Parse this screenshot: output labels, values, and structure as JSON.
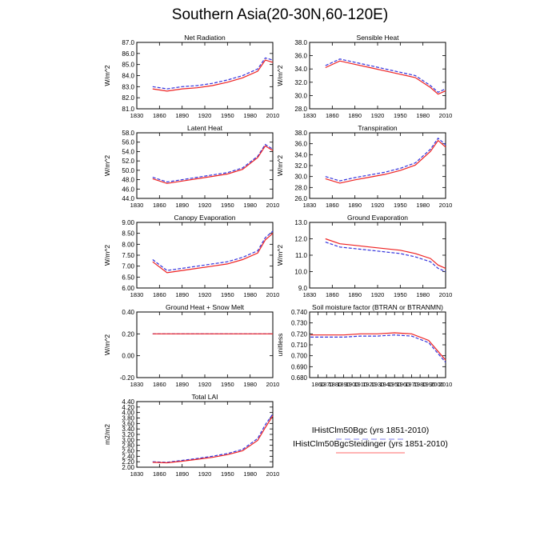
{
  "title": "Southern Asia(20-30N,60-120E)",
  "colors": {
    "series1": "#3333dd",
    "series2": "#ee2222",
    "axis": "#000000"
  },
  "legend": {
    "entries": [
      {
        "label": "IHistClm50Bgc (yrs 1851-2010)",
        "color": "#9999ee",
        "style": "dashed"
      },
      {
        "label": "IHistClm50BgcSteidinger (yrs 1851-2010)",
        "color": "#ff8888",
        "style": "solid"
      }
    ]
  },
  "chart_data": [
    {
      "type": "line",
      "title": "Net Radiation",
      "ylabel": "W/m^2",
      "xlim": [
        1830,
        2010
      ],
      "xticks": [
        "1830",
        "1860",
        "1890",
        "1920",
        "1950",
        "1980",
        "2010"
      ],
      "ylim": [
        81.0,
        87.0
      ],
      "yticks": [
        "81.0",
        "82.0",
        "83.0",
        "84.0",
        "85.0",
        "86.0",
        "87.0"
      ],
      "series": [
        {
          "name": "IHistClm50Bgc (yrs 1851-2010)",
          "x": [
            1851,
            1870,
            1890,
            1910,
            1930,
            1950,
            1970,
            1990,
            2000,
            2010
          ],
          "y": [
            83.0,
            82.8,
            83.0,
            83.1,
            83.3,
            83.6,
            84.0,
            84.6,
            85.6,
            85.4
          ]
        },
        {
          "name": "IHistClm50BgcSteidinger (yrs 1851-2010)",
          "x": [
            1851,
            1870,
            1890,
            1910,
            1930,
            1950,
            1970,
            1990,
            2000,
            2010
          ],
          "y": [
            82.8,
            82.6,
            82.8,
            82.9,
            83.1,
            83.4,
            83.8,
            84.4,
            85.4,
            85.2
          ]
        }
      ]
    },
    {
      "type": "line",
      "title": "Sensible Heat",
      "ylabel": "W/m^2",
      "xlim": [
        1830,
        2010
      ],
      "xticks": [
        "1830",
        "1860",
        "1890",
        "1920",
        "1950",
        "1980",
        "2010"
      ],
      "ylim": [
        28.0,
        38.0
      ],
      "yticks": [
        "28.0",
        "30.0",
        "32.0",
        "34.0",
        "36.0",
        "38.0"
      ],
      "series": [
        {
          "name": "IHistClm50Bgc (yrs 1851-2010)",
          "x": [
            1851,
            1870,
            1890,
            1910,
            1930,
            1950,
            1970,
            1990,
            2000,
            2010
          ],
          "y": [
            34.5,
            35.5,
            35.0,
            34.5,
            34.0,
            33.5,
            33.0,
            31.5,
            30.5,
            31.0
          ]
        },
        {
          "name": "IHistClm50BgcSteidinger (yrs 1851-2010)",
          "x": [
            1851,
            1870,
            1890,
            1910,
            1930,
            1950,
            1970,
            1990,
            2000,
            2010
          ],
          "y": [
            34.2,
            35.2,
            34.7,
            34.2,
            33.7,
            33.2,
            32.7,
            31.2,
            30.2,
            30.7
          ]
        }
      ]
    },
    {
      "type": "line",
      "title": "Latent Heat",
      "ylabel": "W/m^2",
      "xlim": [
        1830,
        2010
      ],
      "xticks": [
        "1830",
        "1860",
        "1890",
        "1920",
        "1950",
        "1980",
        "2010"
      ],
      "ylim": [
        44.0,
        58.0
      ],
      "yticks": [
        "44.0",
        "46.0",
        "48.0",
        "50.0",
        "52.0",
        "54.0",
        "56.0",
        "58.0"
      ],
      "series": [
        {
          "name": "IHistClm50Bgc (yrs 1851-2010)",
          "x": [
            1851,
            1870,
            1890,
            1910,
            1930,
            1950,
            1970,
            1990,
            2000,
            2010
          ],
          "y": [
            48.5,
            47.5,
            48.0,
            48.5,
            49.0,
            49.5,
            50.5,
            53.0,
            55.5,
            54.5
          ]
        },
        {
          "name": "IHistClm50BgcSteidinger (yrs 1851-2010)",
          "x": [
            1851,
            1870,
            1890,
            1910,
            1930,
            1950,
            1970,
            1990,
            2000,
            2010
          ],
          "y": [
            48.2,
            47.2,
            47.7,
            48.2,
            48.7,
            49.2,
            50.2,
            52.7,
            55.2,
            54.2
          ]
        }
      ]
    },
    {
      "type": "line",
      "title": "Transpiration",
      "ylabel": "W/m^2",
      "xlim": [
        1830,
        2010
      ],
      "xticks": [
        "1830",
        "1860",
        "1890",
        "1920",
        "1950",
        "1980",
        "2010"
      ],
      "ylim": [
        26.0,
        38.0
      ],
      "yticks": [
        "26.0",
        "28.0",
        "30.0",
        "32.0",
        "34.0",
        "36.0",
        "38.0"
      ],
      "series": [
        {
          "name": "IHistClm50Bgc (yrs 1851-2010)",
          "x": [
            1851,
            1870,
            1890,
            1910,
            1930,
            1950,
            1970,
            1990,
            2000,
            2010
          ],
          "y": [
            30.0,
            29.2,
            29.8,
            30.3,
            30.8,
            31.5,
            32.5,
            35.0,
            37.0,
            35.8
          ]
        },
        {
          "name": "IHistClm50BgcSteidinger (yrs 1851-2010)",
          "x": [
            1851,
            1870,
            1890,
            1910,
            1930,
            1950,
            1970,
            1990,
            2000,
            2010
          ],
          "y": [
            29.6,
            28.8,
            29.4,
            29.9,
            30.4,
            31.1,
            32.1,
            34.6,
            36.6,
            35.4
          ]
        }
      ]
    },
    {
      "type": "line",
      "title": "Canopy Evaporation",
      "ylabel": "W/m^2",
      "xlim": [
        1830,
        2010
      ],
      "xticks": [
        "1830",
        "1860",
        "1890",
        "1920",
        "1950",
        "1980",
        "2010"
      ],
      "ylim": [
        6.0,
        9.0
      ],
      "yticks": [
        "6.00",
        "6.50",
        "7.00",
        "7.50",
        "8.00",
        "8.50",
        "9.00"
      ],
      "series": [
        {
          "name": "IHistClm50Bgc (yrs 1851-2010)",
          "x": [
            1851,
            1870,
            1890,
            1910,
            1930,
            1950,
            1970,
            1990,
            2000,
            2010
          ],
          "y": [
            7.3,
            6.8,
            6.9,
            7.0,
            7.1,
            7.2,
            7.4,
            7.7,
            8.3,
            8.6
          ]
        },
        {
          "name": "IHistClm50BgcSteidinger (yrs 1851-2010)",
          "x": [
            1851,
            1870,
            1890,
            1910,
            1930,
            1950,
            1970,
            1990,
            2000,
            2010
          ],
          "y": [
            7.2,
            6.7,
            6.8,
            6.9,
            7.0,
            7.1,
            7.3,
            7.6,
            8.2,
            8.5
          ]
        }
      ]
    },
    {
      "type": "line",
      "title": "Ground Evaporation",
      "ylabel": "W/m^2",
      "xlim": [
        1830,
        2010
      ],
      "xticks": [
        "1830",
        "1860",
        "1890",
        "1920",
        "1950",
        "1980",
        "2010"
      ],
      "ylim": [
        9.0,
        13.0
      ],
      "yticks": [
        "9.0",
        "10.0",
        "11.0",
        "12.0",
        "13.0"
      ],
      "series": [
        {
          "name": "IHistClm50Bgc (yrs 1851-2010)",
          "x": [
            1851,
            1870,
            1890,
            1910,
            1930,
            1950,
            1970,
            1990,
            2000,
            2010
          ],
          "y": [
            11.8,
            11.5,
            11.4,
            11.3,
            11.2,
            11.1,
            10.9,
            10.6,
            10.2,
            10.0
          ]
        },
        {
          "name": "IHistClm50BgcSteidinger (yrs 1851-2010)",
          "x": [
            1851,
            1870,
            1890,
            1910,
            1930,
            1950,
            1970,
            1990,
            2000,
            2010
          ],
          "y": [
            12.0,
            11.7,
            11.6,
            11.5,
            11.4,
            11.3,
            11.1,
            10.8,
            10.4,
            10.2
          ]
        }
      ]
    },
    {
      "type": "line",
      "title": "Ground Heat + Snow Melt",
      "ylabel": "W/m^2",
      "xlim": [
        1830,
        2010
      ],
      "xticks": [
        "1830",
        "1860",
        "1890",
        "1920",
        "1950",
        "1980",
        "2010"
      ],
      "ylim": [
        -0.2,
        0.4
      ],
      "yticks": [
        "-0.20",
        "0.00",
        "0.20",
        "0.40"
      ],
      "series": [
        {
          "name": "IHistClm50Bgc (yrs 1851-2010)",
          "x": [
            1851,
            1870,
            1890,
            1910,
            1930,
            1950,
            1970,
            1990,
            2000,
            2010
          ],
          "y": [
            0.2,
            0.2,
            0.2,
            0.2,
            0.2,
            0.2,
            0.2,
            0.2,
            0.2,
            0.2
          ]
        },
        {
          "name": "IHistClm50BgcSteidinger (yrs 1851-2010)",
          "x": [
            1851,
            1870,
            1890,
            1910,
            1930,
            1950,
            1970,
            1990,
            2000,
            2010
          ],
          "y": [
            0.2,
            0.2,
            0.2,
            0.2,
            0.2,
            0.2,
            0.2,
            0.2,
            0.2,
            0.2
          ]
        }
      ]
    },
    {
      "type": "line",
      "title": "Soil moisture factor (BTRAN or BTRANMN)",
      "ylabel": "unitless",
      "xlim": [
        1850,
        2010
      ],
      "xticks": [
        "1860",
        "1870",
        "1880",
        "1890",
        "1900",
        "1910",
        "1920",
        "1930",
        "1940",
        "1950",
        "1960",
        "1970",
        "1980",
        "1990",
        "2000",
        "2010"
      ],
      "ylim": [
        0.68,
        0.74
      ],
      "yticks": [
        "0.680",
        "0.690",
        "0.700",
        "0.710",
        "0.720",
        "0.730",
        "0.740"
      ],
      "series": [
        {
          "name": "IHistClm50Bgc (yrs 1851-2010)",
          "x": [
            1851,
            1870,
            1890,
            1910,
            1930,
            1950,
            1970,
            1990,
            2000,
            2010
          ],
          "y": [
            0.717,
            0.717,
            0.717,
            0.718,
            0.718,
            0.719,
            0.718,
            0.712,
            0.703,
            0.694
          ]
        },
        {
          "name": "IHistClm50BgcSteidinger (yrs 1851-2010)",
          "x": [
            1851,
            1870,
            1890,
            1910,
            1930,
            1950,
            1970,
            1990,
            2000,
            2010
          ],
          "y": [
            0.719,
            0.719,
            0.719,
            0.72,
            0.72,
            0.721,
            0.72,
            0.714,
            0.705,
            0.696
          ]
        }
      ]
    },
    {
      "type": "line",
      "title": "Total LAI",
      "ylabel": "m2/m2",
      "xlim": [
        1830,
        2010
      ],
      "xticks": [
        "1830",
        "1860",
        "1890",
        "1920",
        "1950",
        "1980",
        "2010"
      ],
      "ylim": [
        2.0,
        4.4
      ],
      "yticks": [
        "2.00",
        "2.20",
        "2.40",
        "2.60",
        "2.80",
        "3.00",
        "3.20",
        "3.40",
        "3.60",
        "3.80",
        "4.00",
        "4.20",
        "4.40"
      ],
      "series": [
        {
          "name": "IHistClm50Bgc (yrs 1851-2010)",
          "x": [
            1851,
            1870,
            1890,
            1910,
            1930,
            1950,
            1970,
            1990,
            2000,
            2010
          ],
          "y": [
            2.2,
            2.18,
            2.25,
            2.32,
            2.4,
            2.5,
            2.65,
            3.05,
            3.55,
            3.95
          ]
        },
        {
          "name": "IHistClm50BgcSteidinger (yrs 1851-2010)",
          "x": [
            1851,
            1870,
            1890,
            1910,
            1930,
            1950,
            1970,
            1990,
            2000,
            2010
          ],
          "y": [
            2.18,
            2.16,
            2.22,
            2.29,
            2.36,
            2.46,
            2.6,
            2.98,
            3.45,
            3.88
          ]
        }
      ]
    }
  ]
}
